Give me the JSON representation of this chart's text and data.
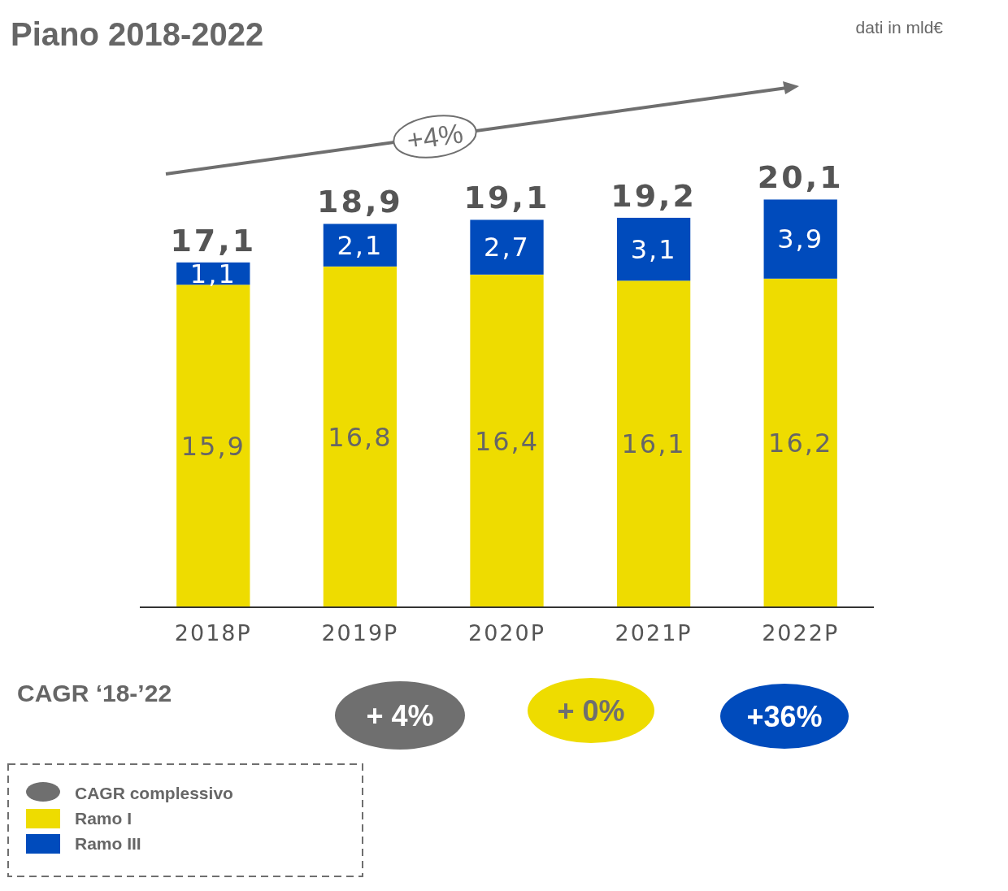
{
  "chart_data": {
    "type": "bar",
    "title": "Piano 2018-2022",
    "subtitle": "dati in mld€",
    "categories": [
      "2018P",
      "2019P",
      "2020P",
      "2021P",
      "2022P"
    ],
    "stacked": true,
    "tick_labels": "x",
    "legend": "bottom left",
    "series": [
      {
        "name": "Ramo I",
        "color": "#eedc00",
        "values": [
          15.9,
          16.8,
          16.4,
          16.1,
          16.2
        ],
        "value_labels": [
          "15,9",
          "16,8",
          "16,4",
          "16,1",
          "16,2"
        ]
      },
      {
        "name": "Ramo III",
        "color": "#004bbc",
        "values": [
          1.1,
          2.1,
          2.7,
          3.1,
          3.9
        ],
        "value_labels": [
          "1,1",
          "2,1",
          "2,7",
          "3,1",
          "3,9"
        ]
      }
    ],
    "totals": [
      "17,1",
      "18,9",
      "19,1",
      "19,2",
      "20,1"
    ],
    "annotations": [
      "+4%",
      "CAGR ‘18-’22",
      "+ 4%",
      "+ 0%",
      "+36%",
      "CAGR complessivo"
    ]
  }
}
